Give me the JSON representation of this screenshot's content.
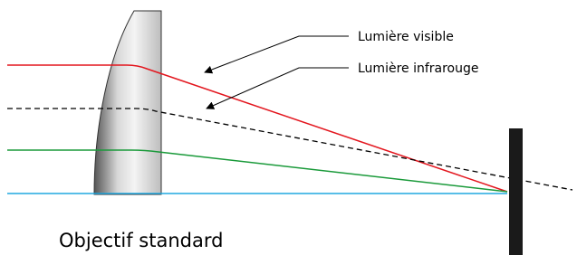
{
  "labels": {
    "visible": "Lumière visible",
    "infrared": "Lumière infrarouge",
    "lens": "Objectif standard"
  }
}
